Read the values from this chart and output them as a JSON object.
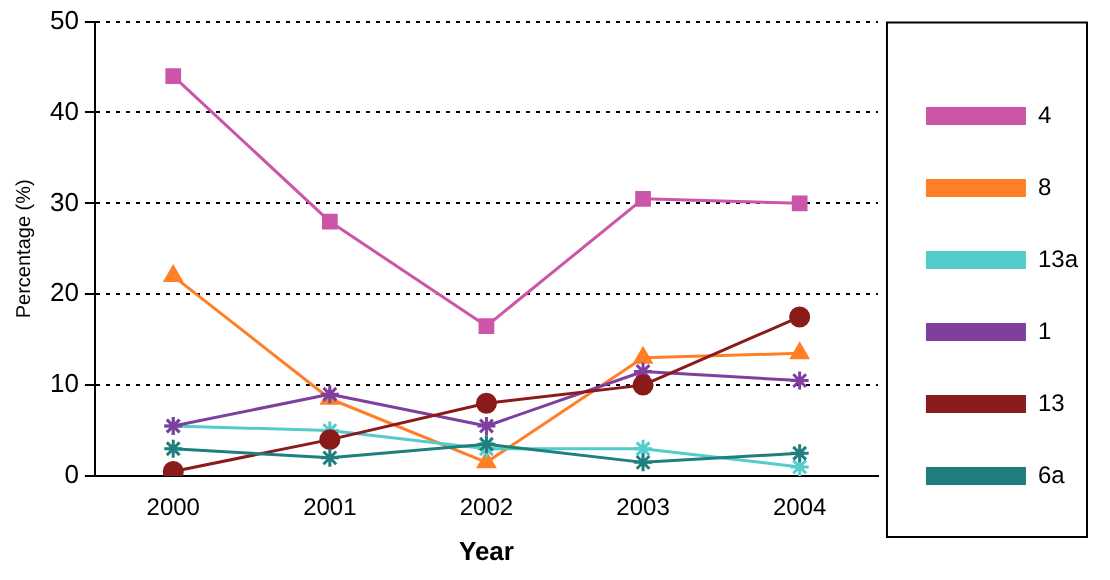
{
  "chart_data": {
    "type": "line",
    "xlabel": "Year",
    "ylabel": "Percentage (%)",
    "categories": [
      "2000",
      "2001",
      "2002",
      "2003",
      "2004"
    ],
    "series": [
      {
        "name": "4",
        "color": "#cc55aa",
        "marker": "square",
        "values": [
          44,
          28,
          16.5,
          30.5,
          30
        ]
      },
      {
        "name": "8",
        "color": "#ff7f27",
        "marker": "triangle",
        "values": [
          22,
          8.5,
          1.5,
          13,
          13.5
        ]
      },
      {
        "name": "13a",
        "color": "#55cccc",
        "marker": "cross",
        "values": [
          5.5,
          5,
          3,
          3,
          1
        ]
      },
      {
        "name": "1",
        "color": "#7f3f9f",
        "marker": "cross",
        "values": [
          5.5,
          9,
          5.5,
          11.5,
          10.5
        ]
      },
      {
        "name": "13",
        "color": "#8b1a1a",
        "marker": "circle",
        "values": [
          0.5,
          4,
          8,
          10,
          17.5
        ]
      },
      {
        "name": "6a",
        "color": "#1f7f7f",
        "marker": "cross",
        "values": [
          3,
          2,
          3.5,
          1.5,
          2.5
        ]
      }
    ],
    "ylim": [
      0,
      50
    ],
    "yticks": [
      0,
      10,
      20,
      30,
      40,
      50
    ],
    "grid": "y",
    "legend": "right",
    "line_style": "solid"
  }
}
